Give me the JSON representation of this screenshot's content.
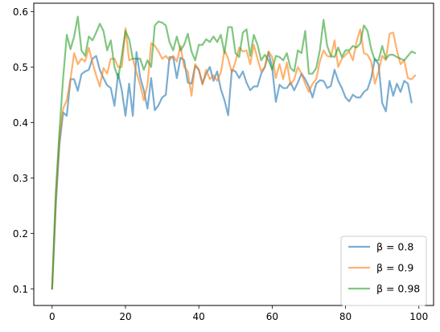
{
  "chart_data": {
    "type": "line",
    "title": "",
    "xlabel": "",
    "ylabel": "",
    "xlim": [
      -5,
      104
    ],
    "ylim": [
      0.07,
      0.615
    ],
    "xticks": [
      0,
      20,
      40,
      60,
      80,
      100
    ],
    "yticks": [
      0.1,
      0.2,
      0.3,
      0.4,
      0.5,
      0.6
    ],
    "xtick_labels": [
      "0",
      "20",
      "40",
      "60",
      "80",
      "100"
    ],
    "ytick_labels": [
      "0.1",
      "0.2",
      "0.3",
      "0.4",
      "0.5",
      "0.6"
    ],
    "grid": false,
    "legend_position": "lower-right",
    "series": [
      {
        "name": "β = 0.8",
        "color": "#1f77b4",
        "values": [
          0.1,
          0.25,
          0.36,
          0.418,
          0.412,
          0.478,
          0.478,
          0.457,
          0.487,
          0.492,
          0.495,
          0.515,
          0.52,
          0.495,
          0.48,
          0.467,
          0.462,
          0.43,
          0.488,
          0.458,
          0.412,
          0.47,
          0.412,
          0.527,
          0.482,
          0.458,
          0.425,
          0.48,
          0.422,
          0.431,
          0.445,
          0.45,
          0.518,
          0.518,
          0.48,
          0.517,
          0.512,
          0.472,
          0.47,
          0.502,
          0.495,
          0.47,
          0.488,
          0.5,
          0.475,
          0.492,
          0.46,
          0.44,
          0.413,
          0.495,
          0.492,
          0.48,
          0.492,
          0.472,
          0.458,
          0.465,
          0.465,
          0.488,
          0.5,
          0.527,
          0.498,
          0.437,
          0.468,
          0.462,
          0.462,
          0.472,
          0.458,
          0.472,
          0.488,
          0.478,
          0.465,
          0.445,
          0.47,
          0.476,
          0.475,
          0.462,
          0.466,
          0.495,
          0.475,
          0.462,
          0.445,
          0.438,
          0.45,
          0.445,
          0.445,
          0.455,
          0.46,
          0.48,
          0.515,
          0.505,
          0.435,
          0.42,
          0.475,
          0.448,
          0.47,
          0.455,
          0.475,
          0.47,
          0.436
        ]
      },
      {
        "name": "β = 0.9",
        "color": "#ff7f0e",
        "values": [
          0.1,
          0.26,
          0.37,
          0.425,
          0.44,
          0.478,
          0.525,
          0.505,
          0.515,
          0.51,
          0.535,
          0.508,
          0.485,
          0.465,
          0.498,
          0.488,
          0.515,
          0.515,
          0.5,
          0.5,
          0.57,
          0.512,
          0.515,
          0.49,
          0.468,
          0.44,
          0.468,
          0.543,
          0.538,
          0.528,
          0.515,
          0.52,
          0.512,
          0.52,
          0.51,
          0.538,
          0.5,
          0.492,
          0.448,
          0.505,
          0.495,
          0.468,
          0.495,
          0.478,
          0.485,
          0.475,
          0.49,
          0.53,
          0.515,
          0.49,
          0.51,
          0.535,
          0.528,
          0.53,
          0.505,
          0.54,
          0.515,
          0.492,
          0.5,
          0.528,
          0.518,
          0.48,
          0.505,
          0.478,
          0.508,
          0.468,
          0.478,
          0.5,
          0.488,
          0.47,
          0.455,
          0.47,
          0.478,
          0.51,
          0.53,
          0.52,
          0.518,
          0.548,
          0.5,
          0.515,
          0.522,
          0.528,
          0.512,
          0.545,
          0.568,
          0.525,
          0.522,
          0.51,
          0.47,
          0.492,
          0.52,
          0.512,
          0.56,
          0.562,
          0.53,
          0.505,
          0.512,
          0.48,
          0.478,
          0.485
        ]
      },
      {
        "name": "β = 0.98",
        "color": "#2ca02c",
        "values": [
          0.1,
          0.275,
          0.385,
          0.48,
          0.558,
          0.532,
          0.555,
          0.591,
          0.53,
          0.52,
          0.555,
          0.548,
          0.562,
          0.578,
          0.565,
          0.53,
          0.548,
          0.5,
          0.48,
          0.52,
          0.565,
          0.55,
          0.515,
          0.515,
          0.515,
          0.495,
          0.512,
          0.5,
          0.575,
          0.582,
          0.58,
          0.575,
          0.545,
          0.53,
          0.555,
          0.53,
          0.54,
          0.56,
          0.528,
          0.512,
          0.54,
          0.54,
          0.55,
          0.545,
          0.555,
          0.545,
          0.558,
          0.525,
          0.572,
          0.572,
          0.525,
          0.518,
          0.562,
          0.568,
          0.52,
          0.558,
          0.54,
          0.512,
          0.522,
          0.512,
          0.495,
          0.52,
          0.518,
          0.512,
          0.525,
          0.498,
          0.492,
          0.53,
          0.525,
          0.565,
          0.488,
          0.488,
          0.498,
          0.53,
          0.585,
          0.538,
          0.52,
          0.518,
          0.535,
          0.518,
          0.53,
          0.53,
          0.538,
          0.535,
          0.542,
          0.575,
          0.565,
          0.532,
          0.512,
          0.512,
          0.538,
          0.515,
          0.522,
          0.522,
          0.518,
          0.515,
          0.512,
          0.52,
          0.528,
          0.525
        ]
      }
    ]
  }
}
